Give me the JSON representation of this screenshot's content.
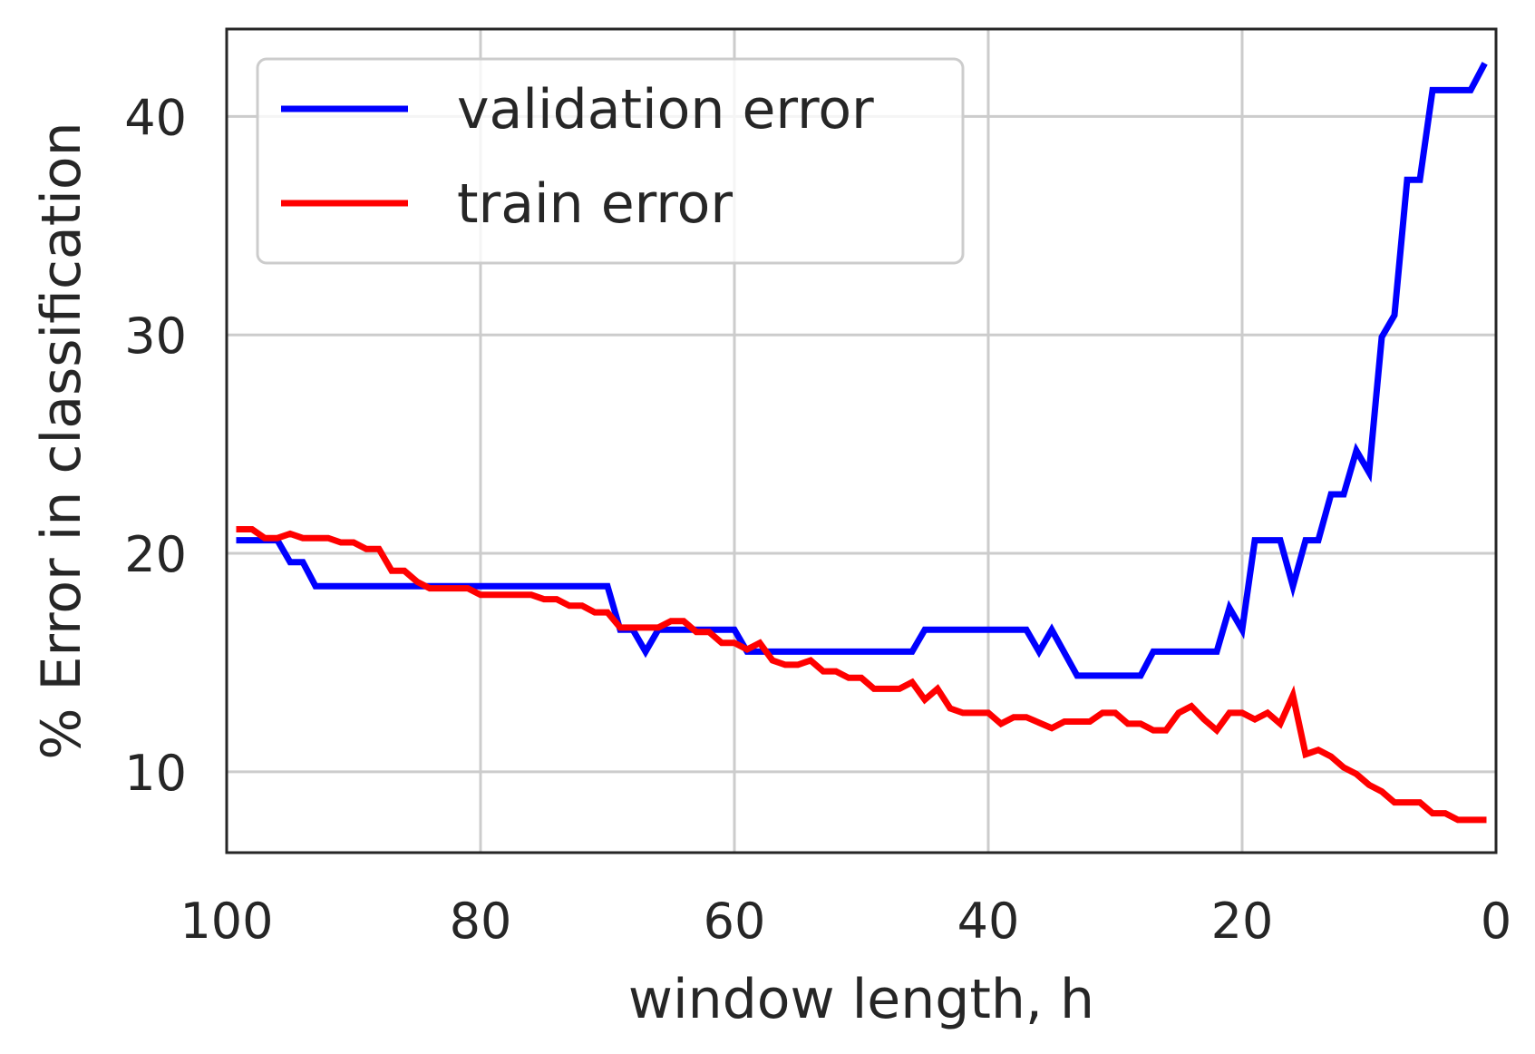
{
  "chart_data": {
    "type": "line",
    "title": "",
    "xlabel": "window length, h",
    "ylabel": "% Error in classification",
    "xlim": [
      100,
      0
    ],
    "ylim": [
      6.3,
      44.0
    ],
    "x_ticks": [
      100,
      80,
      60,
      40,
      20,
      0
    ],
    "x_tick_labels": [
      "100",
      "80",
      "60",
      "40",
      "20",
      "0"
    ],
    "y_ticks": [
      10,
      20,
      30,
      40
    ],
    "y_tick_labels": [
      "10",
      "20",
      "30",
      "40"
    ],
    "grid": true,
    "legend": "top-left",
    "series": [
      {
        "name": "validation error",
        "color": "#0000ff",
        "points": [
          [
            99,
            20.6
          ],
          [
            96,
            20.6
          ],
          [
            95,
            19.6
          ],
          [
            94,
            19.6
          ],
          [
            93,
            18.5
          ],
          [
            70,
            18.5
          ],
          [
            69,
            16.5
          ],
          [
            68,
            16.5
          ],
          [
            67,
            15.5
          ],
          [
            66,
            16.5
          ],
          [
            60,
            16.5
          ],
          [
            59,
            15.5
          ],
          [
            46,
            15.5
          ],
          [
            45,
            16.5
          ],
          [
            37,
            16.5
          ],
          [
            36,
            15.5
          ],
          [
            35,
            16.5
          ],
          [
            33,
            14.4
          ],
          [
            28,
            14.4
          ],
          [
            27,
            15.5
          ],
          [
            22,
            15.5
          ],
          [
            21,
            17.5
          ],
          [
            20,
            16.5
          ],
          [
            19,
            20.6
          ],
          [
            17,
            20.6
          ],
          [
            16,
            18.5
          ],
          [
            15,
            20.6
          ],
          [
            14,
            20.6
          ],
          [
            13,
            22.7
          ],
          [
            12,
            22.7
          ],
          [
            11,
            24.7
          ],
          [
            10,
            23.7
          ],
          [
            9,
            29.9
          ],
          [
            8,
            30.9
          ],
          [
            7,
            37.1
          ],
          [
            6,
            37.1
          ],
          [
            5,
            41.2
          ],
          [
            2,
            41.2
          ],
          [
            1,
            42.3
          ]
        ]
      },
      {
        "name": "train error",
        "color": "#ff0000",
        "points": [
          [
            99,
            21.1
          ],
          [
            98,
            21.1
          ],
          [
            97,
            20.7
          ],
          [
            96,
            20.7
          ],
          [
            95,
            20.9
          ],
          [
            94,
            20.7
          ],
          [
            92,
            20.7
          ],
          [
            91,
            20.5
          ],
          [
            90,
            20.5
          ],
          [
            89,
            20.2
          ],
          [
            88,
            20.2
          ],
          [
            87,
            19.2
          ],
          [
            86,
            19.2
          ],
          [
            85,
            18.7
          ],
          [
            84,
            18.4
          ],
          [
            81,
            18.4
          ],
          [
            80,
            18.1
          ],
          [
            76,
            18.1
          ],
          [
            75,
            17.9
          ],
          [
            74,
            17.9
          ],
          [
            73,
            17.6
          ],
          [
            72,
            17.6
          ],
          [
            71,
            17.3
          ],
          [
            70,
            17.3
          ],
          [
            69,
            16.6
          ],
          [
            66,
            16.6
          ],
          [
            65,
            16.9
          ],
          [
            64,
            16.9
          ],
          [
            63,
            16.4
          ],
          [
            62,
            16.4
          ],
          [
            61,
            15.9
          ],
          [
            60,
            15.9
          ],
          [
            59,
            15.6
          ],
          [
            58,
            15.9
          ],
          [
            57,
            15.1
          ],
          [
            56,
            14.9
          ],
          [
            55,
            14.9
          ],
          [
            54,
            15.1
          ],
          [
            53,
            14.6
          ],
          [
            52,
            14.6
          ],
          [
            51,
            14.3
          ],
          [
            50,
            14.3
          ],
          [
            49,
            13.8
          ],
          [
            47,
            13.8
          ],
          [
            46,
            14.1
          ],
          [
            45,
            13.3
          ],
          [
            44,
            13.8
          ],
          [
            43,
            12.9
          ],
          [
            42,
            12.7
          ],
          [
            40,
            12.7
          ],
          [
            39,
            12.2
          ],
          [
            38,
            12.5
          ],
          [
            37,
            12.5
          ],
          [
            35,
            12.0
          ],
          [
            34,
            12.3
          ],
          [
            32,
            12.3
          ],
          [
            31,
            12.7
          ],
          [
            30,
            12.7
          ],
          [
            29,
            12.2
          ],
          [
            28,
            12.2
          ],
          [
            27,
            11.9
          ],
          [
            26,
            11.9
          ],
          [
            25,
            12.7
          ],
          [
            24,
            13.0
          ],
          [
            23,
            12.4
          ],
          [
            22,
            11.9
          ],
          [
            21,
            12.7
          ],
          [
            20,
            12.7
          ],
          [
            19,
            12.4
          ],
          [
            18,
            12.7
          ],
          [
            17,
            12.2
          ],
          [
            16,
            13.5
          ],
          [
            15,
            10.8
          ],
          [
            14,
            11.0
          ],
          [
            13,
            10.7
          ],
          [
            12,
            10.2
          ],
          [
            11,
            9.9
          ],
          [
            10,
            9.4
          ],
          [
            9,
            9.1
          ],
          [
            8,
            8.6
          ],
          [
            6,
            8.6
          ],
          [
            5,
            8.1
          ],
          [
            4,
            8.1
          ],
          [
            3,
            7.8
          ],
          [
            1,
            7.8
          ]
        ]
      }
    ]
  }
}
